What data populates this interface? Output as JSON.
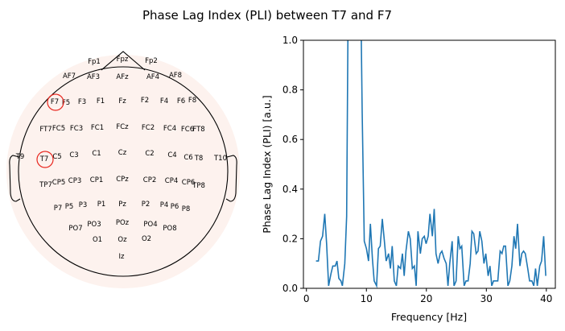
{
  "title": "Phase Lag Index (PLI) between T7 and F7",
  "topomap": {
    "electrodes": [
      "Fp1",
      "Fpz",
      "Fp2",
      "AF7",
      "AF3",
      "AFz",
      "AF4",
      "AF8",
      "F7",
      "F5",
      "F3",
      "F1",
      "Fz",
      "F2",
      "F4",
      "F6",
      "F8",
      "FT7",
      "FC5",
      "FC3",
      "FC1",
      "FCz",
      "FC2",
      "FC4",
      "FC6",
      "FT8",
      "T9",
      "T7",
      "C5",
      "C3",
      "C1",
      "Cz",
      "C2",
      "C4",
      "C6",
      "T8",
      "T10",
      "TP7",
      "CP5",
      "CP3",
      "CP1",
      "CPz",
      "CP2",
      "CP4",
      "CP6",
      "TP8",
      "P7",
      "P5",
      "P3",
      "P1",
      "Pz",
      "P2",
      "P4",
      "P6",
      "P8",
      "PO7",
      "PO3",
      "POz",
      "PO4",
      "PO8",
      "O1",
      "Oz",
      "O2",
      "Iz"
    ],
    "highlighted": [
      "F7",
      "T7"
    ],
    "highlight_color": "#e8261e",
    "background_color": "#fdf2ee"
  },
  "chart_data": {
    "type": "line",
    "title": "Phase Lag Index (PLI) between T7 and F7",
    "xlabel": "Frequency [Hz]",
    "ylabel": "Phase Lag Index (PLI) [a.u.]",
    "xlim": [
      -0.5,
      41.5
    ],
    "ylim": [
      0,
      1.0
    ],
    "xticks": [
      "0",
      "10",
      "20",
      "30",
      "40"
    ],
    "yticks": [
      "0.0",
      "0.2",
      "0.4",
      "0.6",
      "0.8",
      "1.0"
    ],
    "grid": false,
    "color": "#1f77b4",
    "x": [
      1.6,
      2.0,
      2.35,
      2.7,
      3.05,
      3.36,
      3.7,
      4.1,
      4.4,
      4.8,
      5.1,
      5.4,
      5.75,
      6.0,
      6.4,
      6.7,
      7.0,
      9.0,
      9.3,
      9.65,
      10.0,
      10.35,
      10.66,
      11.0,
      11.3,
      11.7,
      12.0,
      12.3,
      12.65,
      13.0,
      13.3,
      13.7,
      14.0,
      14.3,
      14.65,
      15.0,
      15.3,
      15.7,
      16.0,
      16.3,
      16.6,
      17.0,
      17.3,
      17.65,
      18.0,
      18.3,
      18.6,
      19.0,
      19.3,
      19.65,
      19.95,
      20.3,
      20.6,
      21.0,
      21.3,
      21.6,
      21.95,
      22.3,
      22.6,
      22.95,
      23.3,
      23.6,
      23.9,
      24.3,
      24.6,
      24.95,
      25.3,
      25.6,
      25.9,
      26.3,
      26.6,
      26.95,
      27.3,
      27.6,
      27.9,
      28.3,
      28.6,
      28.9,
      29.25,
      29.6,
      29.9,
      30.3,
      30.6,
      30.9,
      31.2,
      31.6,
      31.9,
      32.3,
      32.6,
      32.9,
      33.2,
      33.6,
      33.9,
      34.25,
      34.6,
      34.9,
      35.2,
      35.6,
      35.9,
      36.2,
      36.5,
      36.9,
      37.2,
      37.6,
      37.9,
      38.2,
      38.5,
      38.9,
      39.2,
      39.55,
      39.9
    ],
    "y": [
      0.11,
      0.11,
      0.19,
      0.21,
      0.3,
      0.18,
      0.01,
      0.06,
      0.09,
      0.09,
      0.11,
      0.04,
      0.03,
      0.01,
      0.1,
      0.29,
      1.3,
      1.3,
      0.71,
      0.19,
      0.16,
      0.11,
      0.26,
      0.12,
      0.03,
      0.01,
      0.16,
      0.17,
      0.28,
      0.19,
      0.11,
      0.14,
      0.08,
      0.17,
      0.03,
      0.01,
      0.09,
      0.08,
      0.14,
      0.05,
      0.15,
      0.23,
      0.2,
      0.08,
      0.09,
      0.01,
      0.23,
      0.14,
      0.2,
      0.21,
      0.18,
      0.21,
      0.3,
      0.21,
      0.32,
      0.14,
      0.1,
      0.14,
      0.15,
      0.12,
      0.1,
      0.01,
      0.1,
      0.19,
      0.01,
      0.03,
      0.21,
      0.16,
      0.17,
      0.01,
      0.03,
      0.03,
      0.1,
      0.23,
      0.22,
      0.14,
      0.15,
      0.23,
      0.19,
      0.1,
      0.14,
      0.05,
      0.09,
      0.01,
      0.03,
      0.03,
      0.03,
      0.15,
      0.14,
      0.17,
      0.17,
      0.01,
      0.03,
      0.09,
      0.21,
      0.16,
      0.26,
      0.09,
      0.14,
      0.15,
      0.14,
      0.08,
      0.03,
      0.03,
      0.01,
      0.08,
      0.01,
      0.09,
      0.11,
      0.21,
      0.05
    ]
  }
}
